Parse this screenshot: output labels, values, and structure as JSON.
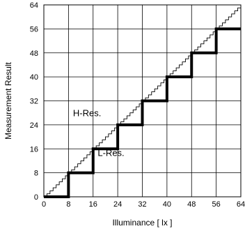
{
  "chart_data": {
    "type": "line",
    "xlabel": "Illuminance [ lx ]",
    "ylabel": "Measurement Result",
    "xlim": [
      0,
      64
    ],
    "ylim": [
      0,
      64
    ],
    "xticks": [
      0,
      8,
      16,
      24,
      32,
      40,
      48,
      56,
      64
    ],
    "yticks": [
      0,
      8,
      16,
      24,
      32,
      40,
      48,
      56,
      64
    ],
    "grid": true,
    "annotations": [
      {
        "text": "H-Res.",
        "x": 14,
        "y": 26
      },
      {
        "text": "L-Res.",
        "x": 17.5,
        "y": 14.5
      }
    ],
    "series": [
      {
        "name": "H-Res.",
        "style": "thin-staircase",
        "step": 1,
        "x": [
          0,
          64
        ],
        "y": [
          0,
          64
        ]
      },
      {
        "name": "L-Res.",
        "style": "thick-staircase",
        "step": 8,
        "x": [
          0,
          8,
          8,
          16,
          16,
          24,
          24,
          32,
          32,
          40,
          40,
          48,
          48,
          56,
          56,
          64
        ],
        "y": [
          0,
          0,
          8,
          8,
          16,
          16,
          24,
          24,
          32,
          32,
          40,
          40,
          48,
          48,
          56,
          56
        ]
      }
    ],
    "colors": {
      "line": "#000000",
      "grid": "#000000",
      "background": "#ffffff"
    }
  }
}
